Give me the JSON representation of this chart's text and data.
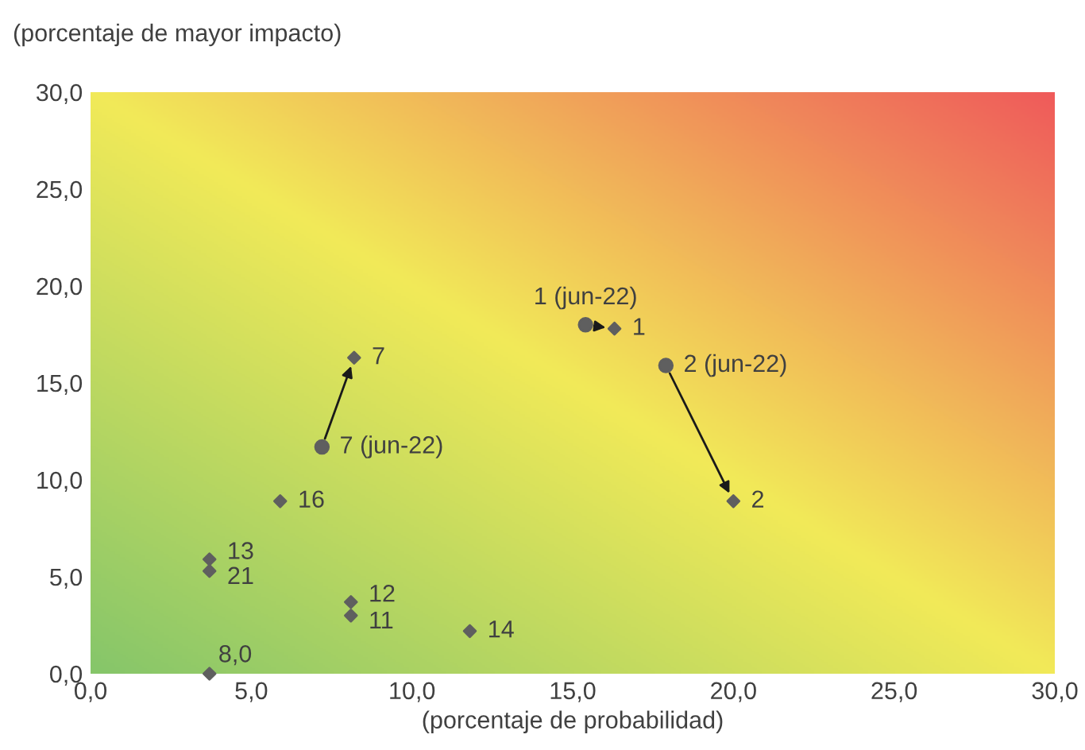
{
  "chart_data": {
    "type": "scatter",
    "xlabel": "(porcentaje de probabilidad)",
    "ylabel": "(porcentaje de mayor impacto)",
    "xlim": [
      0,
      30
    ],
    "ylim": [
      0,
      30
    ],
    "xticks": [
      {
        "value": 0,
        "label": "0,0"
      },
      {
        "value": 5,
        "label": "5,0"
      },
      {
        "value": 10,
        "label": "10,0"
      },
      {
        "value": 15,
        "label": "15,0"
      },
      {
        "value": 20,
        "label": "20,0"
      },
      {
        "value": 25,
        "label": "25,0"
      },
      {
        "value": 30,
        "label": "30,0"
      }
    ],
    "yticks": [
      {
        "value": 0,
        "label": "0,0"
      },
      {
        "value": 5,
        "label": "5,0"
      },
      {
        "value": 10,
        "label": "10,0"
      },
      {
        "value": 15,
        "label": "15,0"
      },
      {
        "value": 20,
        "label": "20,0"
      },
      {
        "value": 25,
        "label": "25,0"
      },
      {
        "value": 30,
        "label": "30,0"
      }
    ],
    "grid": false,
    "legend": false,
    "series": [
      {
        "color": "#5f5f5f",
        "marker": "circle",
        "x": [
          15.4,
          17.9,
          7.2
        ],
        "values": [
          18.0,
          15.9,
          11.7
        ]
      },
      {
        "color": "#5f5f5f",
        "marker": "diamond",
        "x": [
          16.3,
          20.0,
          8.2,
          5.9,
          3.7,
          3.7,
          8.1,
          8.1,
          11.8,
          3.7
        ],
        "values": [
          17.8,
          8.9,
          16.3,
          8.9,
          5.9,
          5.3,
          3.7,
          3.0,
          2.2,
          0.0
        ]
      }
    ],
    "annotations": [
      {
        "text": "1 (jun-22)",
        "x": 15.4,
        "y": 18.0
      },
      {
        "text": "2 (jun-22)",
        "x": 17.9,
        "y": 15.9
      },
      {
        "text": "7 (jun-22)",
        "x": 7.2,
        "y": 11.7
      },
      {
        "text": "1",
        "x": 16.3,
        "y": 17.8
      },
      {
        "text": "2",
        "x": 20.0,
        "y": 8.9
      },
      {
        "text": "7",
        "x": 8.2,
        "y": 16.3
      },
      {
        "text": "16",
        "x": 5.9,
        "y": 8.9
      },
      {
        "text": "13",
        "x": 3.7,
        "y": 5.9
      },
      {
        "text": "21",
        "x": 3.7,
        "y": 5.3
      },
      {
        "text": "12",
        "x": 8.1,
        "y": 3.7
      },
      {
        "text": "11",
        "x": 8.1,
        "y": 3.0
      },
      {
        "text": "14",
        "x": 11.8,
        "y": 2.2
      },
      {
        "text": "8,0",
        "x": 3.7,
        "y": 0.0
      }
    ]
  }
}
